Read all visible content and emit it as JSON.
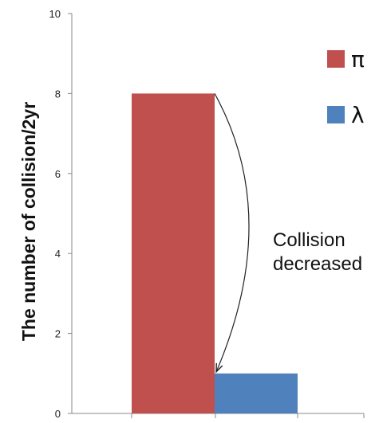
{
  "chart_data": {
    "type": "bar",
    "title": "",
    "xlabel": "",
    "ylabel": "The number of collision/2yr",
    "ylim": [
      0,
      10
    ],
    "yticks": [
      0,
      2,
      4,
      6,
      8,
      10
    ],
    "grid": false,
    "legend_position": "top-right",
    "series": [
      {
        "name": "π",
        "color": "#C0504D",
        "values": [
          8
        ]
      },
      {
        "name": "λ",
        "color": "#4F81BD",
        "values": [
          1
        ]
      }
    ],
    "annotation": {
      "lines": [
        "Collision",
        "decreased"
      ],
      "from_series": "π",
      "to_series": "λ"
    }
  }
}
